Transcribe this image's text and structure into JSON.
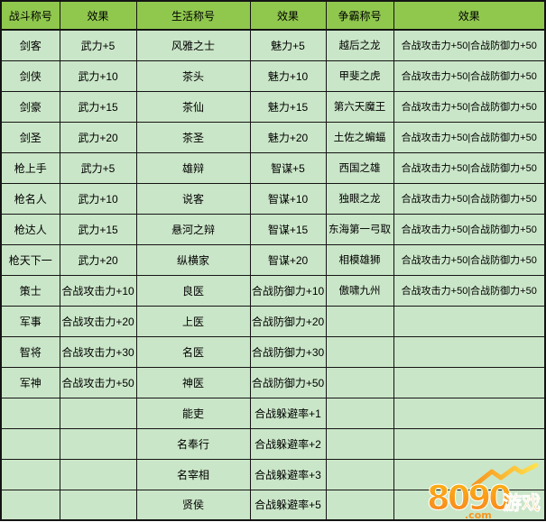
{
  "table": {
    "headers": [
      "战斗称号",
      "效果",
      "生活称号",
      "效果",
      "争霸称号",
      "效果"
    ],
    "rows": [
      [
        "剑客",
        "武力+5",
        "风雅之士",
        "魅力+5",
        "越后之龙",
        "合战攻击力+50|合战防御力+50"
      ],
      [
        "剑侠",
        "武力+10",
        "茶头",
        "魅力+10",
        "甲斐之虎",
        "合战攻击力+50|合战防御力+50"
      ],
      [
        "剑豪",
        "武力+15",
        "茶仙",
        "魅力+15",
        "第六天魔王",
        "合战攻击力+50|合战防御力+50"
      ],
      [
        "剑圣",
        "武力+20",
        "茶圣",
        "魅力+20",
        "土佐之蝙蝠",
        "合战攻击力+50|合战防御力+50"
      ],
      [
        "枪上手",
        "武力+5",
        "雄辩",
        "智谋+5",
        "西国之雄",
        "合战攻击力+50|合战防御力+50"
      ],
      [
        "枪名人",
        "武力+10",
        "说客",
        "智谋+10",
        "独眼之龙",
        "合战攻击力+50|合战防御力+50"
      ],
      [
        "枪达人",
        "武力+15",
        "悬河之辩",
        "智谋+15",
        "东海第一弓取",
        "合战攻击力+50|合战防御力+50"
      ],
      [
        "枪天下一",
        "武力+20",
        "纵横家",
        "智谋+20",
        "相模雄狮",
        "合战攻击力+50|合战防御力+50"
      ],
      [
        "策士",
        "合战攻击力+10",
        "良医",
        "合战防御力+10",
        "傲啸九州",
        "合战攻击力+50|合战防御力+50"
      ],
      [
        "军事",
        "合战攻击力+20",
        "上医",
        "合战防御力+20",
        "",
        ""
      ],
      [
        "智将",
        "合战攻击力+30",
        "名医",
        "合战防御力+30",
        "",
        ""
      ],
      [
        "军神",
        "合战攻击力+50",
        "神医",
        "合战防御力+50",
        "",
        ""
      ],
      [
        "",
        "",
        "能吏",
        "合战躲避率+1",
        "",
        ""
      ],
      [
        "",
        "",
        "名奉行",
        "合战躲避率+2",
        "",
        ""
      ],
      [
        "",
        "",
        "名宰相",
        "合战躲避率+3",
        "",
        ""
      ],
      [
        "",
        "",
        "贤侯",
        "合战躲避率+5",
        "",
        ""
      ]
    ]
  },
  "watermark": {
    "number": "8090",
    "suffix": ".com",
    "label": "游戏"
  },
  "colors": {
    "header_bg": "#90C84E",
    "cell_bg": "#CAE6C8",
    "border": "#141414",
    "logo_orange": "#F7941D",
    "logo_yellow": "#FFD21E"
  }
}
